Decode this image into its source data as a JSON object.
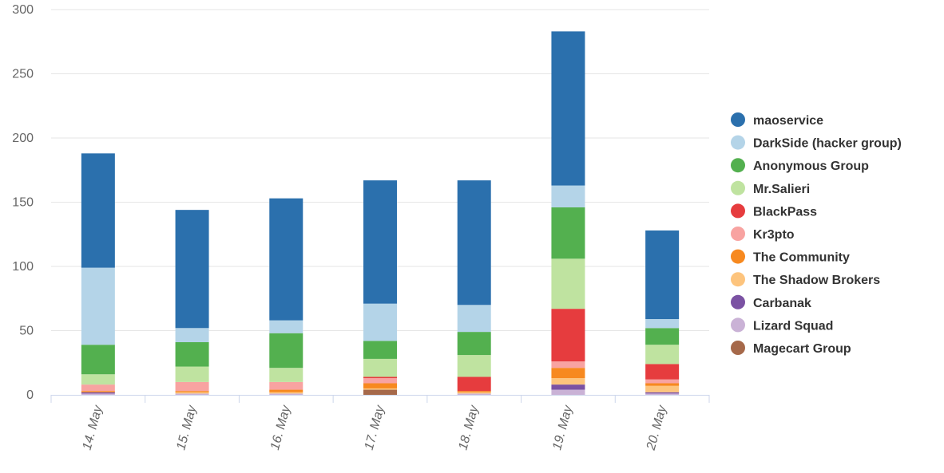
{
  "chart_data": {
    "type": "bar",
    "stacked": true,
    "title": "",
    "xlabel": "",
    "ylabel": "",
    "ylim": [
      0,
      300
    ],
    "yticks": [
      0,
      50,
      100,
      150,
      200,
      250,
      300
    ],
    "grid": true,
    "legend_position": "right",
    "categories": [
      "14. May",
      "15. May",
      "16. May",
      "17. May",
      "18. May",
      "19. May",
      "20. May"
    ],
    "series": [
      {
        "name": "Magecart Group",
        "color": "#a6694a",
        "values": [
          0,
          0,
          0,
          4,
          0,
          0,
          0
        ]
      },
      {
        "name": "Lizard Squad",
        "color": "#cab2d6",
        "values": [
          1,
          1,
          1,
          0,
          1,
          4,
          1
        ]
      },
      {
        "name": "Carbanak",
        "color": "#7b52a3",
        "values": [
          1,
          0,
          0,
          0,
          0,
          4,
          1
        ]
      },
      {
        "name": "The Shadow Brokers",
        "color": "#fdc47d",
        "values": [
          0,
          1,
          1,
          1,
          1,
          5,
          5
        ]
      },
      {
        "name": "The Community",
        "color": "#f7891f",
        "values": [
          1,
          1,
          2,
          4,
          1,
          8,
          2
        ]
      },
      {
        "name": "Kr3pto",
        "color": "#f8a3a1",
        "values": [
          5,
          7,
          6,
          4,
          0,
          5,
          3
        ]
      },
      {
        "name": "BlackPass",
        "color": "#e63c3e",
        "values": [
          0,
          0,
          0,
          1,
          11,
          41,
          12
        ]
      },
      {
        "name": "Mr.Salieri",
        "color": "#bfe3a0",
        "values": [
          8,
          12,
          11,
          14,
          17,
          39,
          15
        ]
      },
      {
        "name": "Anonymous Group",
        "color": "#53b04f",
        "values": [
          23,
          19,
          27,
          14,
          18,
          40,
          13
        ]
      },
      {
        "name": "DarkSide (hacker group)",
        "color": "#b4d4e8",
        "values": [
          60,
          11,
          10,
          29,
          21,
          17,
          7
        ]
      },
      {
        "name": "maoservice",
        "color": "#2b70ad",
        "values": [
          89,
          92,
          95,
          96,
          97,
          120,
          69
        ]
      }
    ]
  }
}
